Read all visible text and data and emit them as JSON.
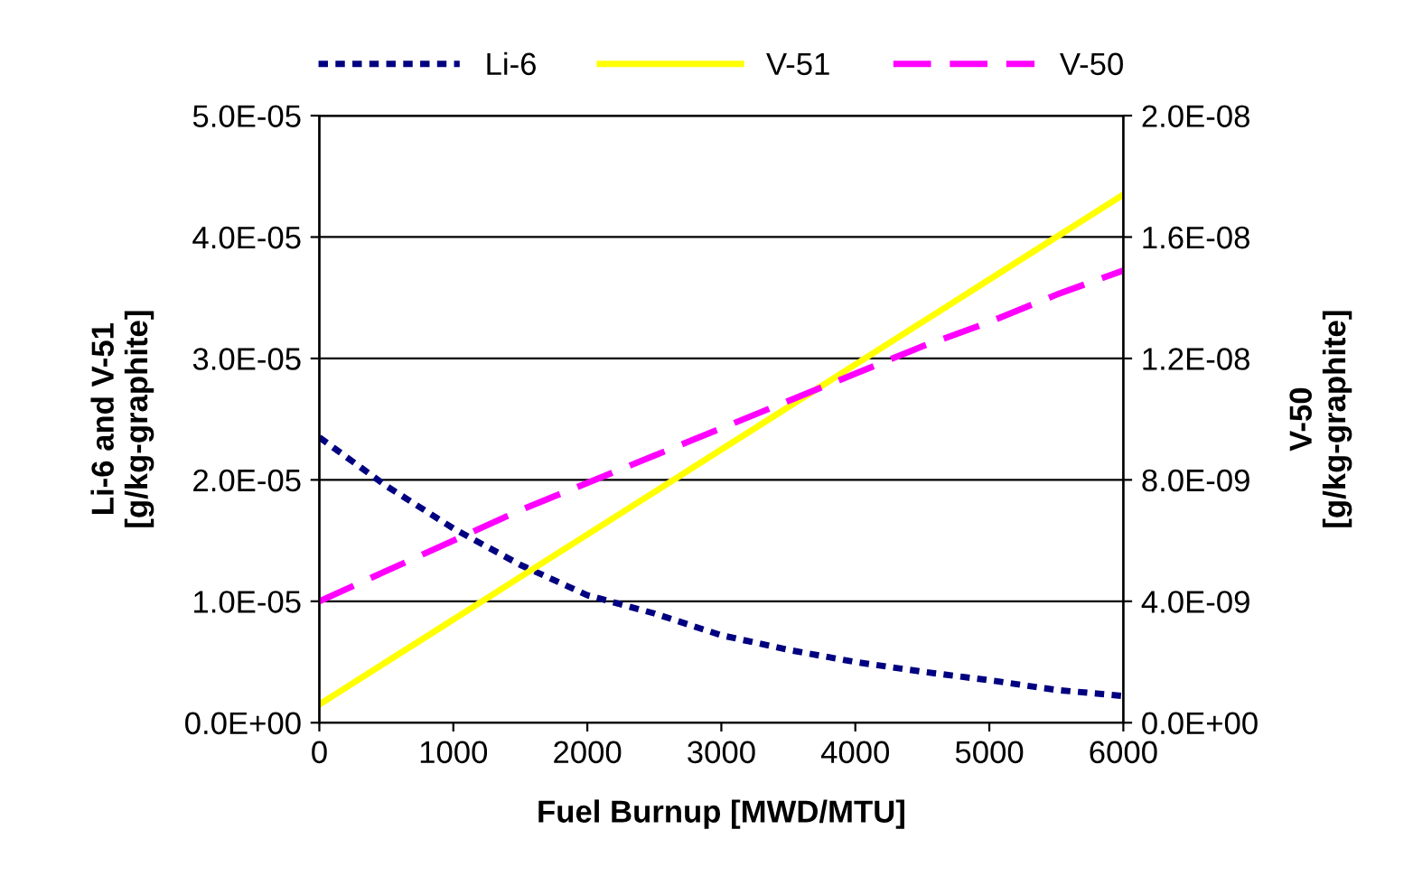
{
  "chart_data": {
    "type": "line",
    "xlabel": "Fuel Burnup [MWD/MTU]",
    "ylabel": "Li-6 and V-51\n[g/kg-graphite]",
    "y2label": "V-50\n[g/kg-graphite]",
    "xlim": [
      0,
      6000
    ],
    "xticks": [
      0,
      1000,
      2000,
      3000,
      4000,
      5000,
      6000
    ],
    "ylim": [
      0,
      5e-05
    ],
    "yticks": [
      {
        "value": 0,
        "label": "0.0E+00"
      },
      {
        "value": 1e-05,
        "label": "1.0E-05"
      },
      {
        "value": 2e-05,
        "label": "2.0E-05"
      },
      {
        "value": 3e-05,
        "label": "3.0E-05"
      },
      {
        "value": 4e-05,
        "label": "4.0E-05"
      },
      {
        "value": 5e-05,
        "label": "5.0E-05"
      }
    ],
    "y2lim": [
      0,
      2e-08
    ],
    "y2ticks": [
      {
        "value": 0,
        "label": "0.0E+00"
      },
      {
        "value": 4e-09,
        "label": "4.0E-09"
      },
      {
        "value": 8e-09,
        "label": "8.0E-09"
      },
      {
        "value": 1.2e-08,
        "label": "1.2E-08"
      },
      {
        "value": 1.6e-08,
        "label": "1.6E-08"
      },
      {
        "value": 2e-08,
        "label": "2.0E-08"
      }
    ],
    "grid": "y",
    "legend": "top",
    "marker": "none",
    "x": [
      0,
      500,
      1000,
      1500,
      2000,
      2500,
      3000,
      3500,
      4000,
      4500,
      5000,
      5500,
      6000
    ],
    "series": [
      {
        "name": "Li-6",
        "color": "#000080",
        "line_style": "dotted",
        "values": [
          2.35e-05,
          1.95e-05,
          1.6e-05,
          1.3e-05,
          1.05e-05,
          9e-06,
          7.2e-06,
          6e-06,
          5e-06,
          4.2e-06,
          3.5e-06,
          2.7e-06,
          2.2e-06
        ]
      },
      {
        "name": "V-51",
        "color": "#ffff00",
        "line_style": "solid",
        "values": [
          1.5e-06,
          5e-06,
          8.5e-06,
          1.2e-05,
          1.55e-05,
          1.9e-05,
          2.25e-05,
          2.6e-05,
          2.95e-05,
          3.3e-05,
          3.65e-05,
          4e-05,
          4.35e-05
        ]
      },
      {
        "name": "V-50",
        "color": "#ff00ff",
        "line_style": "dashed",
        "axis": "y2",
        "values": [
          4e-09,
          5e-09,
          6e-09,
          7e-09,
          7.9e-09,
          8.8e-09,
          9.7e-09,
          1.06e-08,
          1.15e-08,
          1.24e-08,
          1.32e-08,
          1.41e-08,
          1.49e-08
        ]
      }
    ]
  }
}
